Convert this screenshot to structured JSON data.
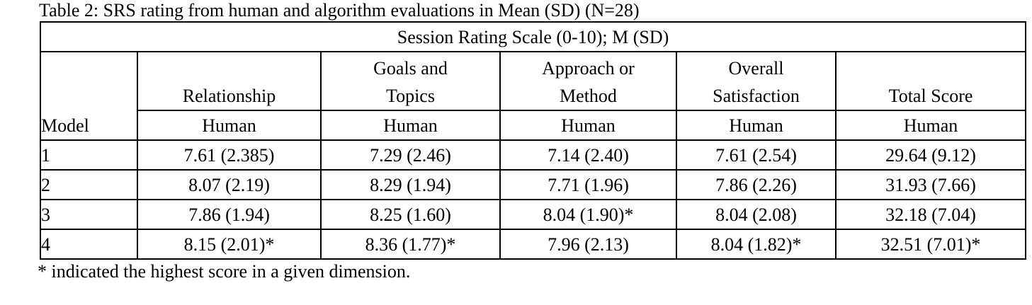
{
  "caption": "Table 2: SRS rating from human and algorithm evaluations in Mean (SD) (N=28)",
  "table": {
    "group_header": "Session Rating Scale (0-10); M (SD)",
    "row_header": "Model",
    "columns": [
      "Relationship",
      "Goals and Topics",
      "Approach or Method",
      "Overall Satisfaction",
      "Total Score"
    ],
    "subheaders": [
      "Human",
      "Human",
      "Human",
      "Human",
      "Human"
    ],
    "rows": [
      [
        "1",
        "7.61 (2.385)",
        "7.29 (2.46)",
        "7.14 (2.40)",
        "7.61 (2.54)",
        "29.64 (9.12)"
      ],
      [
        "2",
        "8.07 (2.19)",
        "8.29 (1.94)",
        "7.71 (1.96)",
        "7.86 (2.26)",
        "31.93 (7.66)"
      ],
      [
        "3",
        "7.86 (1.94)",
        "8.25 (1.60)",
        "8.04 (1.90)*",
        "8.04 (2.08)",
        "32.18 (7.04)"
      ],
      [
        "4",
        "8.15 (2.01)*",
        "8.36 (1.77)*",
        "7.96 (2.13)",
        "8.04 (1.82)*",
        "32.51 (7.01)*"
      ]
    ]
  },
  "note": "* indicated the highest score in a given dimension."
}
